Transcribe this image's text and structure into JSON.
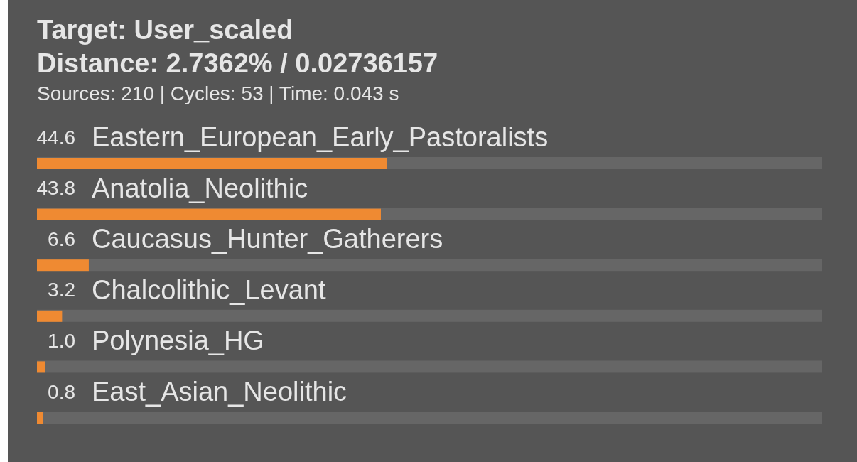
{
  "chart_data": {
    "type": "bar",
    "orientation": "horizontal",
    "title": "Target: User_scaled",
    "subtitle": "Distance: 2.7362% / 0.02736157",
    "annotations": [
      "Sources: 210 | Cycles: 53 | Time: 0.043 s"
    ],
    "categories": [
      "Eastern_European_Early_Pastoralists",
      "Anatolia_Neolithic",
      "Caucasus_Hunter_Gatherers",
      "Chalcolithic_Levant",
      "Polynesia_HG",
      "East_Asian_Neolithic"
    ],
    "values": [
      44.6,
      43.8,
      6.6,
      3.2,
      1.0,
      0.8
    ],
    "value_labels": [
      "44.6",
      "43.8",
      "6.6",
      "3.2",
      "1.0",
      "0.8"
    ],
    "color": "#ef8a32",
    "xlim": [
      0,
      100
    ],
    "tick_labels": "y"
  }
}
